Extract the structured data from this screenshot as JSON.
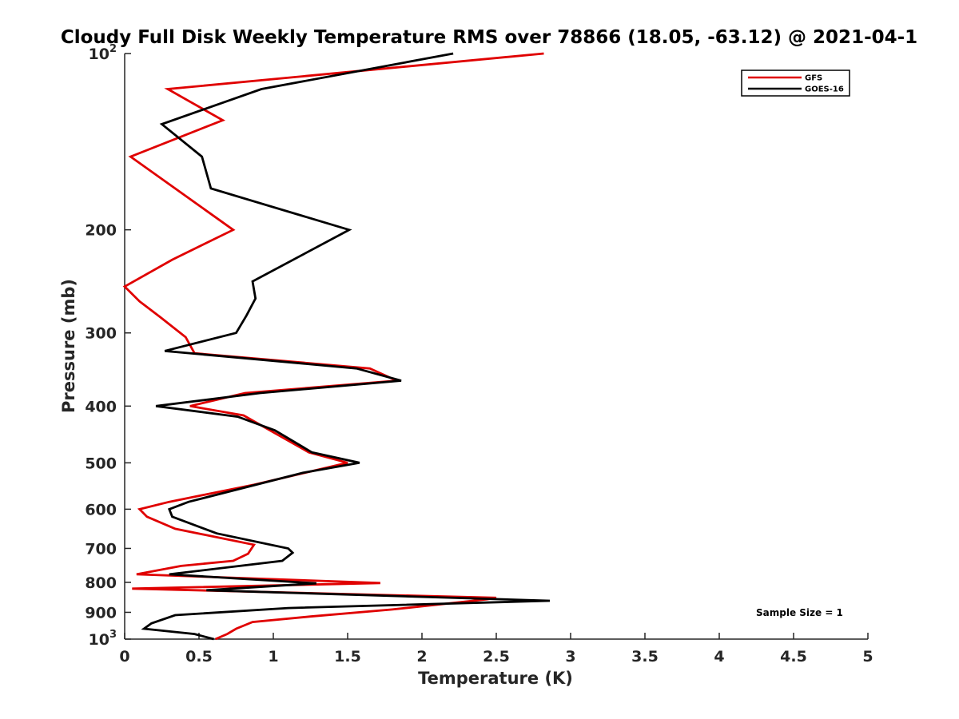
{
  "chart_data": {
    "type": "line",
    "title": "Cloudy Full Disk Weekly Temperature RMS over 78866 (18.05, -63.12) @ 2021-04-1",
    "xlabel": "Temperature (K)",
    "ylabel": "Pressure (mb)",
    "xlim": [
      0,
      5
    ],
    "ylim": [
      100,
      1000
    ],
    "y_scale": "log",
    "y_reversed": true,
    "x_ticks": [
      "0",
      "0.5",
      "1",
      "1.5",
      "2",
      "2.5",
      "3",
      "3.5",
      "4",
      "4.5",
      "5"
    ],
    "y_ticks": [
      {
        "value": 100,
        "base": "10",
        "exp": "2"
      },
      {
        "value": 200,
        "label": "200"
      },
      {
        "value": 300,
        "label": "300"
      },
      {
        "value": 400,
        "label": "400"
      },
      {
        "value": 500,
        "label": "500"
      },
      {
        "value": 600,
        "label": "600"
      },
      {
        "value": 700,
        "label": "700"
      },
      {
        "value": 800,
        "label": "800"
      },
      {
        "value": 900,
        "label": "900"
      },
      {
        "value": 1000,
        "base": "10",
        "exp": "3"
      }
    ],
    "grid": false,
    "legend_position": "top-right",
    "annotation": "Sample Size = 1",
    "series": [
      {
        "name": "GFS",
        "color": "#e00000",
        "points": [
          {
            "x": 2.82,
            "p": 100
          },
          {
            "x": 0.29,
            "p": 115
          },
          {
            "x": 0.66,
            "p": 130
          },
          {
            "x": 0.04,
            "p": 150
          },
          {
            "x": 0.73,
            "p": 200
          },
          {
            "x": 0.32,
            "p": 225
          },
          {
            "x": 0.0,
            "p": 250
          },
          {
            "x": 0.1,
            "p": 265
          },
          {
            "x": 0.24,
            "p": 282
          },
          {
            "x": 0.41,
            "p": 305
          },
          {
            "x": 0.47,
            "p": 325
          },
          {
            "x": 1.65,
            "p": 345
          },
          {
            "x": 1.83,
            "p": 362
          },
          {
            "x": 0.81,
            "p": 380
          },
          {
            "x": 0.44,
            "p": 400
          },
          {
            "x": 0.8,
            "p": 415
          },
          {
            "x": 1.24,
            "p": 480
          },
          {
            "x": 1.5,
            "p": 500
          },
          {
            "x": 0.87,
            "p": 545
          },
          {
            "x": 0.3,
            "p": 583
          },
          {
            "x": 0.1,
            "p": 600
          },
          {
            "x": 0.15,
            "p": 618
          },
          {
            "x": 0.34,
            "p": 648
          },
          {
            "x": 0.87,
            "p": 690
          },
          {
            "x": 0.83,
            "p": 715
          },
          {
            "x": 0.73,
            "p": 735
          },
          {
            "x": 0.38,
            "p": 750
          },
          {
            "x": 0.08,
            "p": 775
          },
          {
            "x": 1.72,
            "p": 802
          },
          {
            "x": 0.05,
            "p": 820
          },
          {
            "x": 2.5,
            "p": 850
          },
          {
            "x": 2.44,
            "p": 855
          },
          {
            "x": 1.8,
            "p": 890
          },
          {
            "x": 1.25,
            "p": 915
          },
          {
            "x": 0.86,
            "p": 935
          },
          {
            "x": 0.75,
            "p": 960
          },
          {
            "x": 0.69,
            "p": 980
          },
          {
            "x": 0.61,
            "p": 1000
          }
        ]
      },
      {
        "name": "GOES-16",
        "color": "#000000",
        "points": [
          {
            "x": 2.21,
            "p": 100
          },
          {
            "x": 0.92,
            "p": 115
          },
          {
            "x": 0.25,
            "p": 132
          },
          {
            "x": 0.52,
            "p": 150
          },
          {
            "x": 0.58,
            "p": 170
          },
          {
            "x": 1.51,
            "p": 200
          },
          {
            "x": 0.86,
            "p": 245
          },
          {
            "x": 0.88,
            "p": 262
          },
          {
            "x": 0.82,
            "p": 280
          },
          {
            "x": 0.75,
            "p": 300
          },
          {
            "x": 0.27,
            "p": 322
          },
          {
            "x": 1.56,
            "p": 345
          },
          {
            "x": 1.86,
            "p": 362
          },
          {
            "x": 0.91,
            "p": 380
          },
          {
            "x": 0.21,
            "p": 400
          },
          {
            "x": 0.76,
            "p": 417
          },
          {
            "x": 1.01,
            "p": 440
          },
          {
            "x": 1.26,
            "p": 480
          },
          {
            "x": 1.58,
            "p": 500
          },
          {
            "x": 1.2,
            "p": 520
          },
          {
            "x": 0.43,
            "p": 583
          },
          {
            "x": 0.3,
            "p": 600
          },
          {
            "x": 0.32,
            "p": 618
          },
          {
            "x": 0.62,
            "p": 660
          },
          {
            "x": 1.1,
            "p": 700
          },
          {
            "x": 1.13,
            "p": 712
          },
          {
            "x": 1.06,
            "p": 735
          },
          {
            "x": 0.3,
            "p": 775
          },
          {
            "x": 1.29,
            "p": 803
          },
          {
            "x": 0.55,
            "p": 825
          },
          {
            "x": 2.86,
            "p": 860
          },
          {
            "x": 1.1,
            "p": 885
          },
          {
            "x": 0.34,
            "p": 910
          },
          {
            "x": 0.18,
            "p": 940
          },
          {
            "x": 0.13,
            "p": 960
          },
          {
            "x": 0.47,
            "p": 980
          },
          {
            "x": 0.6,
            "p": 1000
          }
        ]
      }
    ]
  }
}
